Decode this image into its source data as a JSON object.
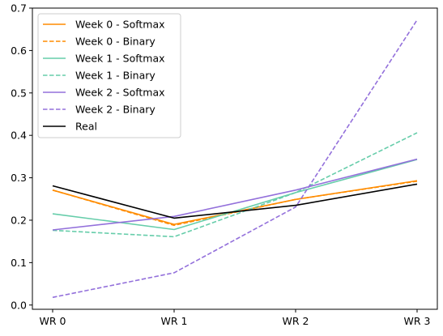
{
  "chart_data": {
    "type": "line",
    "title": "",
    "xlabel": "",
    "ylabel": "",
    "categories": [
      "WR 0",
      "WR 1",
      "WR 2",
      "WR 3"
    ],
    "ylim": [
      -0.01,
      0.7
    ],
    "yticks": [
      "0.0",
      "0.1",
      "0.2",
      "0.3",
      "0.4",
      "0.5",
      "0.6",
      "0.7"
    ],
    "grid": false,
    "legend_position": "top-left",
    "series": [
      {
        "name": "Week 0 - Softmax",
        "values": [
          0.271,
          0.19,
          0.249,
          0.293
        ],
        "color": "#ff8c00",
        "dash": "solid"
      },
      {
        "name": "Week 0 - Binary",
        "values": [
          0.271,
          0.188,
          0.249,
          0.292
        ],
        "color": "#ff8c00",
        "dash": "dashed"
      },
      {
        "name": "Week 1 - Softmax",
        "values": [
          0.215,
          0.178,
          0.265,
          0.343
        ],
        "color": "#66cdaa",
        "dash": "solid"
      },
      {
        "name": "Week 1 - Binary",
        "values": [
          0.176,
          0.161,
          0.265,
          0.406
        ],
        "color": "#66cdaa",
        "dash": "dashed"
      },
      {
        "name": "Week 2 - Softmax",
        "values": [
          0.177,
          0.209,
          0.271,
          0.344
        ],
        "color": "#9370db",
        "dash": "solid"
      },
      {
        "name": "Week 2 - Binary",
        "values": [
          0.018,
          0.076,
          0.231,
          0.672
        ],
        "color": "#9370db",
        "dash": "dashed"
      },
      {
        "name": "Real",
        "values": [
          0.281,
          0.205,
          0.235,
          0.285
        ],
        "color": "#000000",
        "dash": "solid"
      }
    ]
  }
}
